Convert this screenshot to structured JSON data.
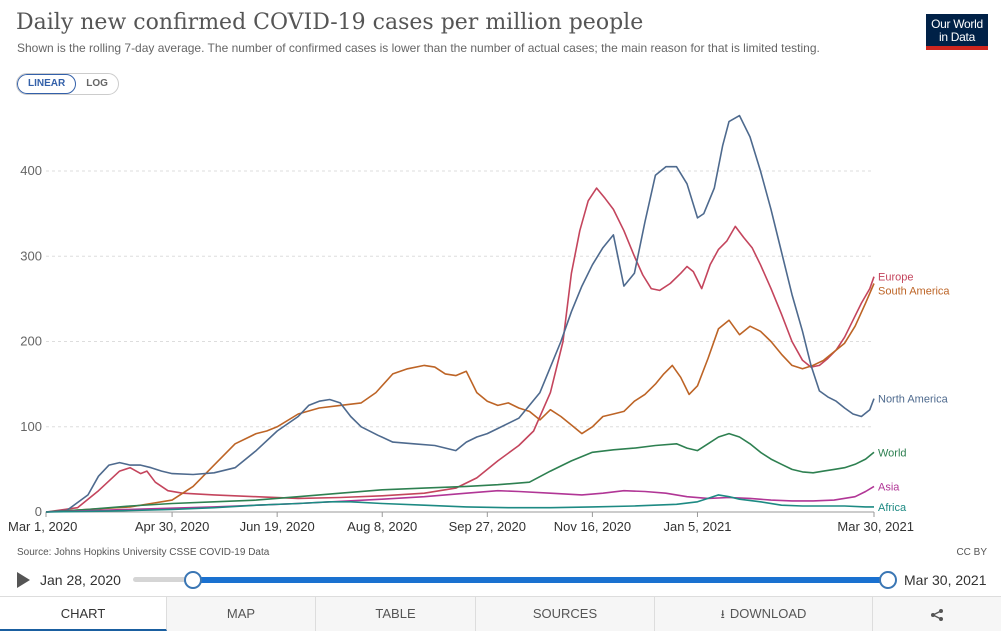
{
  "header": {
    "title": "Daily new confirmed COVID-19 cases per million people",
    "subtitle": "Shown is the rolling 7-day average. The number of confirmed cases is lower than the number of actual cases; the main reason for that is limited testing.",
    "logo_line1": "Our World",
    "logo_line2": "in Data"
  },
  "controls": {
    "linear": "LINEAR",
    "log": "LOG",
    "selected": "LINEAR"
  },
  "chart_data": {
    "type": "line",
    "title": "Daily new confirmed COVID-19 cases per million people",
    "ylim": [
      0,
      480
    ],
    "yticks": [
      "0",
      "100",
      "200",
      "300",
      "400"
    ],
    "ytick_values": [
      0,
      100,
      200,
      300,
      400
    ],
    "xticks": [
      "Mar 1, 2020",
      "Apr 30, 2020",
      "Jun 19, 2020",
      "Aug 8, 2020",
      "Sep 27, 2020",
      "Nov 16, 2020",
      "Jan 5, 2021",
      "Mar 30, 2021"
    ],
    "xtick_days": [
      0,
      60,
      110,
      160,
      210,
      260,
      310,
      394
    ],
    "x_range_days": [
      0,
      394
    ],
    "grid": "horizontal dashed",
    "legend": "labels at line ends (right)",
    "series": [
      {
        "name": "Europe",
        "color": "#c4455d",
        "points": [
          [
            0,
            0
          ],
          [
            15,
            5
          ],
          [
            25,
            25
          ],
          [
            35,
            48
          ],
          [
            40,
            52
          ],
          [
            45,
            45
          ],
          [
            48,
            48
          ],
          [
            52,
            35
          ],
          [
            58,
            25
          ],
          [
            65,
            22
          ],
          [
            80,
            20
          ],
          [
            100,
            18
          ],
          [
            120,
            16
          ],
          [
            140,
            17
          ],
          [
            160,
            19
          ],
          [
            180,
            22
          ],
          [
            195,
            28
          ],
          [
            205,
            40
          ],
          [
            215,
            60
          ],
          [
            225,
            78
          ],
          [
            232,
            95
          ],
          [
            240,
            140
          ],
          [
            246,
            200
          ],
          [
            250,
            280
          ],
          [
            254,
            330
          ],
          [
            258,
            365
          ],
          [
            262,
            380
          ],
          [
            266,
            368
          ],
          [
            270,
            355
          ],
          [
            275,
            330
          ],
          [
            280,
            300
          ],
          [
            284,
            278
          ],
          [
            288,
            262
          ],
          [
            292,
            260
          ],
          [
            297,
            268
          ],
          [
            302,
            280
          ],
          [
            305,
            288
          ],
          [
            308,
            282
          ],
          [
            312,
            262
          ],
          [
            316,
            290
          ],
          [
            320,
            308
          ],
          [
            324,
            318
          ],
          [
            328,
            335
          ],
          [
            332,
            322
          ],
          [
            336,
            310
          ],
          [
            340,
            290
          ],
          [
            345,
            262
          ],
          [
            350,
            232
          ],
          [
            355,
            200
          ],
          [
            360,
            178
          ],
          [
            364,
            170
          ],
          [
            368,
            172
          ],
          [
            372,
            180
          ],
          [
            376,
            190
          ],
          [
            380,
            205
          ],
          [
            384,
            225
          ],
          [
            388,
            245
          ],
          [
            392,
            262
          ],
          [
            394,
            276
          ]
        ]
      },
      {
        "name": "South America",
        "color": "#bd6426",
        "points": [
          [
            0,
            0
          ],
          [
            20,
            3
          ],
          [
            40,
            6
          ],
          [
            50,
            10
          ],
          [
            60,
            14
          ],
          [
            70,
            30
          ],
          [
            80,
            55
          ],
          [
            90,
            80
          ],
          [
            100,
            92
          ],
          [
            105,
            95
          ],
          [
            110,
            100
          ],
          [
            120,
            115
          ],
          [
            130,
            122
          ],
          [
            140,
            125
          ],
          [
            150,
            128
          ],
          [
            157,
            140
          ],
          [
            165,
            162
          ],
          [
            172,
            168
          ],
          [
            180,
            172
          ],
          [
            185,
            170
          ],
          [
            190,
            162
          ],
          [
            195,
            160
          ],
          [
            200,
            165
          ],
          [
            205,
            140
          ],
          [
            210,
            130
          ],
          [
            215,
            125
          ],
          [
            220,
            128
          ],
          [
            225,
            122
          ],
          [
            230,
            118
          ],
          [
            235,
            108
          ],
          [
            240,
            120
          ],
          [
            245,
            112
          ],
          [
            250,
            102
          ],
          [
            255,
            92
          ],
          [
            260,
            100
          ],
          [
            265,
            112
          ],
          [
            270,
            115
          ],
          [
            275,
            118
          ],
          [
            280,
            130
          ],
          [
            285,
            138
          ],
          [
            290,
            150
          ],
          [
            294,
            162
          ],
          [
            298,
            172
          ],
          [
            302,
            158
          ],
          [
            306,
            138
          ],
          [
            310,
            148
          ],
          [
            315,
            180
          ],
          [
            320,
            215
          ],
          [
            325,
            225
          ],
          [
            330,
            208
          ],
          [
            335,
            218
          ],
          [
            340,
            212
          ],
          [
            345,
            200
          ],
          [
            350,
            185
          ],
          [
            355,
            172
          ],
          [
            360,
            168
          ],
          [
            365,
            172
          ],
          [
            370,
            178
          ],
          [
            375,
            188
          ],
          [
            380,
            198
          ],
          [
            385,
            218
          ],
          [
            390,
            245
          ],
          [
            394,
            268
          ]
        ]
      },
      {
        "name": "North America",
        "color": "#4e6a8e",
        "points": [
          [
            0,
            0
          ],
          [
            10,
            2
          ],
          [
            20,
            20
          ],
          [
            25,
            42
          ],
          [
            30,
            55
          ],
          [
            35,
            58
          ],
          [
            40,
            55
          ],
          [
            45,
            55
          ],
          [
            50,
            52
          ],
          [
            55,
            48
          ],
          [
            60,
            45
          ],
          [
            70,
            44
          ],
          [
            80,
            46
          ],
          [
            90,
            52
          ],
          [
            100,
            72
          ],
          [
            110,
            95
          ],
          [
            120,
            112
          ],
          [
            125,
            125
          ],
          [
            130,
            130
          ],
          [
            135,
            132
          ],
          [
            140,
            128
          ],
          [
            145,
            112
          ],
          [
            150,
            100
          ],
          [
            158,
            90
          ],
          [
            165,
            82
          ],
          [
            175,
            80
          ],
          [
            185,
            78
          ],
          [
            195,
            72
          ],
          [
            200,
            82
          ],
          [
            205,
            88
          ],
          [
            210,
            92
          ],
          [
            215,
            98
          ],
          [
            225,
            110
          ],
          [
            235,
            140
          ],
          [
            240,
            170
          ],
          [
            245,
            200
          ],
          [
            250,
            235
          ],
          [
            255,
            265
          ],
          [
            260,
            290
          ],
          [
            265,
            310
          ],
          [
            270,
            325
          ],
          [
            275,
            265
          ],
          [
            280,
            280
          ],
          [
            285,
            340
          ],
          [
            290,
            395
          ],
          [
            295,
            405
          ],
          [
            300,
            405
          ],
          [
            305,
            385
          ],
          [
            310,
            345
          ],
          [
            313,
            350
          ],
          [
            318,
            380
          ],
          [
            322,
            430
          ],
          [
            325,
            458
          ],
          [
            330,
            465
          ],
          [
            335,
            440
          ],
          [
            340,
            400
          ],
          [
            345,
            355
          ],
          [
            350,
            305
          ],
          [
            355,
            255
          ],
          [
            360,
            212
          ],
          [
            364,
            172
          ],
          [
            368,
            142
          ],
          [
            372,
            135
          ],
          [
            376,
            130
          ],
          [
            380,
            122
          ],
          [
            384,
            115
          ],
          [
            388,
            112
          ],
          [
            392,
            120
          ],
          [
            394,
            133
          ]
        ]
      },
      {
        "name": "World",
        "color": "#2e8051",
        "points": [
          [
            0,
            0
          ],
          [
            20,
            3
          ],
          [
            40,
            7
          ],
          [
            60,
            10
          ],
          [
            80,
            12
          ],
          [
            100,
            14
          ],
          [
            120,
            18
          ],
          [
            140,
            22
          ],
          [
            160,
            26
          ],
          [
            180,
            28
          ],
          [
            200,
            30
          ],
          [
            215,
            32
          ],
          [
            230,
            35
          ],
          [
            240,
            48
          ],
          [
            250,
            60
          ],
          [
            260,
            70
          ],
          [
            270,
            73
          ],
          [
            280,
            75
          ],
          [
            290,
            78
          ],
          [
            300,
            80
          ],
          [
            305,
            75
          ],
          [
            310,
            72
          ],
          [
            315,
            80
          ],
          [
            320,
            88
          ],
          [
            325,
            92
          ],
          [
            330,
            88
          ],
          [
            335,
            80
          ],
          [
            340,
            70
          ],
          [
            345,
            62
          ],
          [
            350,
            56
          ],
          [
            355,
            50
          ],
          [
            360,
            47
          ],
          [
            365,
            46
          ],
          [
            370,
            48
          ],
          [
            375,
            50
          ],
          [
            380,
            52
          ],
          [
            385,
            56
          ],
          [
            390,
            62
          ],
          [
            394,
            70
          ]
        ]
      },
      {
        "name": "Asia",
        "color": "#b13696",
        "points": [
          [
            0,
            0
          ],
          [
            40,
            3
          ],
          [
            80,
            6
          ],
          [
            120,
            10
          ],
          [
            160,
            15
          ],
          [
            180,
            18
          ],
          [
            200,
            22
          ],
          [
            215,
            25
          ],
          [
            225,
            24
          ],
          [
            240,
            22
          ],
          [
            255,
            20
          ],
          [
            265,
            22
          ],
          [
            275,
            25
          ],
          [
            285,
            24
          ],
          [
            295,
            22
          ],
          [
            305,
            18
          ],
          [
            315,
            16
          ],
          [
            325,
            17
          ],
          [
            335,
            16
          ],
          [
            345,
            14
          ],
          [
            355,
            13
          ],
          [
            365,
            13
          ],
          [
            375,
            14
          ],
          [
            385,
            18
          ],
          [
            390,
            24
          ],
          [
            394,
            30
          ]
        ]
      },
      {
        "name": "Africa",
        "color": "#1d8a83",
        "points": [
          [
            0,
            0
          ],
          [
            30,
            1
          ],
          [
            60,
            3
          ],
          [
            80,
            5
          ],
          [
            100,
            8
          ],
          [
            120,
            10
          ],
          [
            135,
            12
          ],
          [
            145,
            12
          ],
          [
            160,
            10
          ],
          [
            180,
            8
          ],
          [
            200,
            6
          ],
          [
            220,
            5
          ],
          [
            240,
            5
          ],
          [
            260,
            6
          ],
          [
            280,
            7
          ],
          [
            300,
            9
          ],
          [
            310,
            12
          ],
          [
            315,
            16
          ],
          [
            320,
            20
          ],
          [
            325,
            18
          ],
          [
            330,
            15
          ],
          [
            340,
            12
          ],
          [
            350,
            8
          ],
          [
            360,
            7
          ],
          [
            370,
            7
          ],
          [
            380,
            7
          ],
          [
            390,
            6
          ],
          [
            394,
            6
          ]
        ]
      }
    ],
    "end_labels": [
      {
        "series": "Europe",
        "text": "Europe"
      },
      {
        "series": "South America",
        "text": "South America"
      },
      {
        "series": "North America",
        "text": "North America"
      },
      {
        "series": "World",
        "text": "World"
      },
      {
        "series": "Asia",
        "text": "Asia"
      },
      {
        "series": "Africa",
        "text": "Africa"
      }
    ]
  },
  "footer": {
    "source": "Source: Johns Hopkins University CSSE COVID-19 Data",
    "license": "CC BY"
  },
  "timeline": {
    "start_label": "Jan 28, 2020",
    "end_label": "Mar 30, 2021"
  },
  "tabs": [
    {
      "label": "CHART"
    },
    {
      "label": "MAP"
    },
    {
      "label": "TABLE"
    },
    {
      "label": "SOURCES"
    },
    {
      "label": "DOWNLOAD"
    },
    {
      "label": ""
    }
  ]
}
